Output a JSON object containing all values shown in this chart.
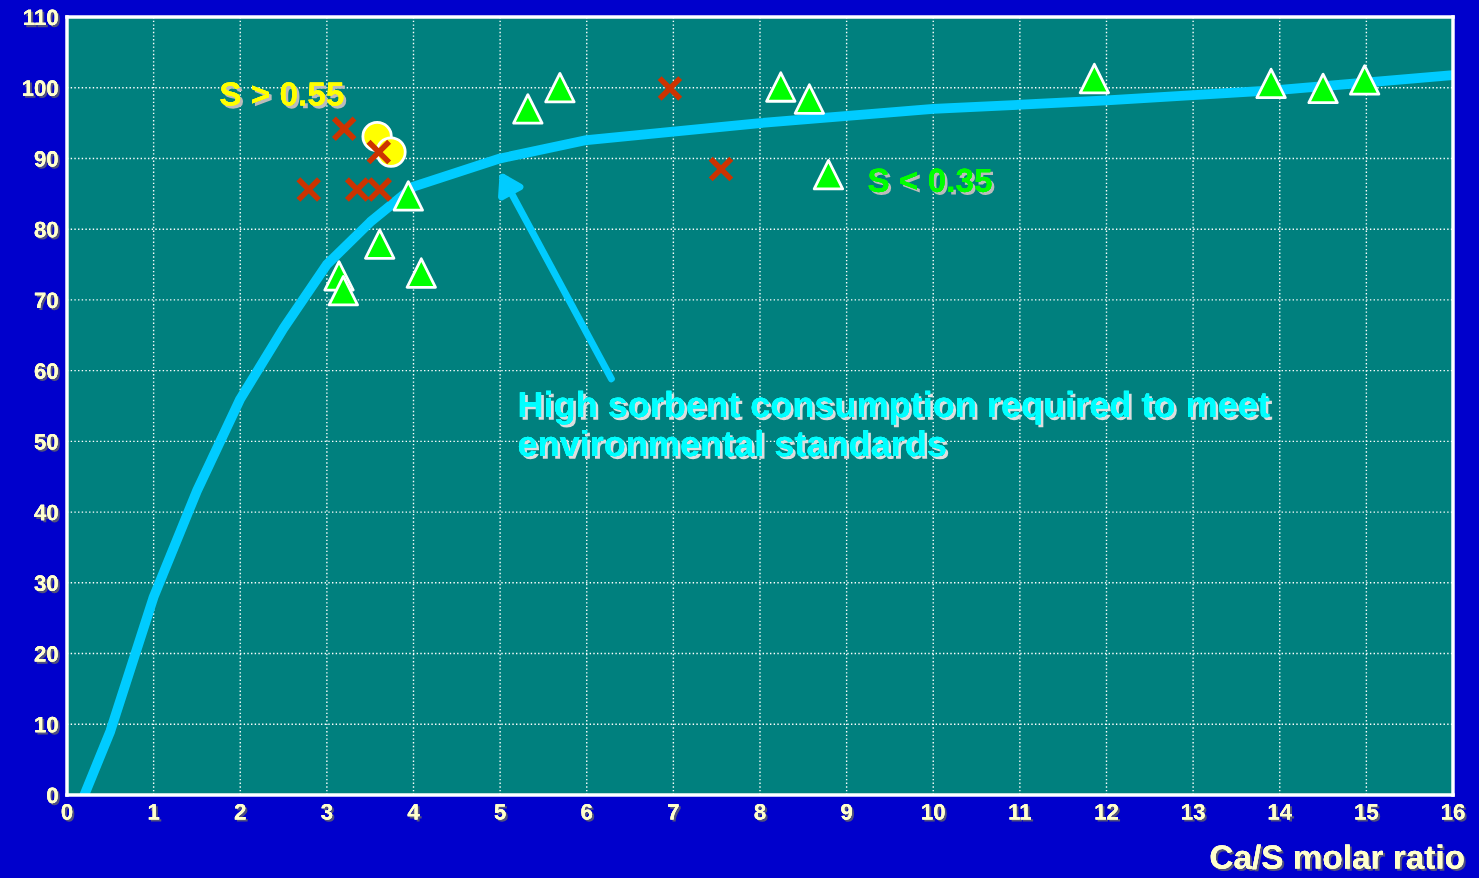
{
  "chart_data": {
    "type": "scatter",
    "xlabel": "Ca/S molar ratio",
    "xlim": [
      0,
      16
    ],
    "xticks": [
      0,
      1,
      2,
      3,
      4,
      5,
      6,
      7,
      8,
      9,
      10,
      11,
      12,
      13,
      14,
      15,
      16
    ],
    "ylim": [
      0,
      110
    ],
    "yticks": [
      0,
      10,
      20,
      30,
      40,
      50,
      60,
      70,
      80,
      90,
      100,
      110
    ],
    "grid": true,
    "legend": false,
    "series": [
      {
        "type": "line",
        "color": "#00ccff",
        "marker": "none",
        "x": [
          0.2,
          0.5,
          1,
          1.5,
          2,
          2.5,
          3,
          3.5,
          4,
          5,
          6,
          8,
          10,
          12,
          14,
          16
        ],
        "values": [
          0,
          9,
          28,
          43,
          56,
          66,
          75,
          81,
          86,
          90,
          92.6,
          95,
          97,
          98.2,
          99.7,
          101.8
        ]
      },
      {
        "color": "#cc3300",
        "marker": "cross",
        "x": [
          2.79,
          3.2,
          3.35,
          3.61,
          3.6,
          6.96,
          7.55
        ],
        "values": [
          85.6,
          94.2,
          85.6,
          85.6,
          90.9,
          99.9,
          88.5
        ]
      },
      {
        "name": "S > 0.55",
        "color": "#ffff00",
        "marker": "circle",
        "x": [
          3.58,
          3.74
        ],
        "values": [
          93.1,
          90.9
        ]
      },
      {
        "name": "S < 0.35",
        "color": "#00ff00",
        "marker": "triangle",
        "x": [
          3.14,
          3.19,
          3.61,
          3.94,
          4.09,
          5.32,
          5.69,
          8.24,
          8.57,
          8.79,
          11.86,
          13.9,
          14.5,
          14.98
        ],
        "values": [
          73.4,
          71.3,
          77.9,
          84.7,
          73.8,
          97.0,
          100,
          100.1,
          98.4,
          87.7,
          101.3,
          100.6,
          99.9,
          101.1
        ]
      }
    ],
    "annotations": [
      "High sorbent consumption required to meet\nenvironmental standards"
    ]
  }
}
